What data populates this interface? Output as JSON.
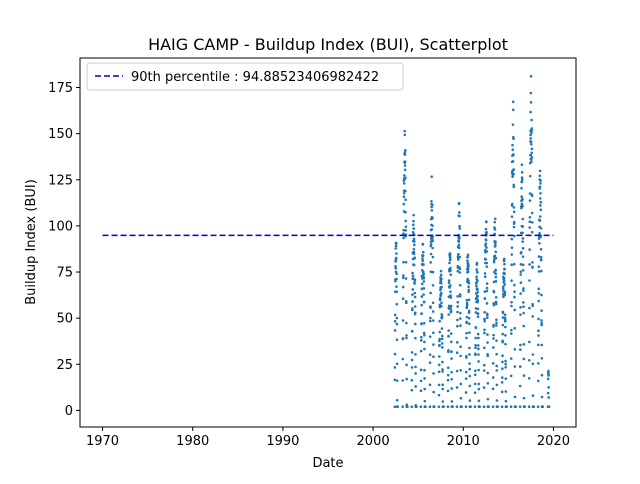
{
  "chart_data": {
    "type": "scatter",
    "title": "HAIG CAMP - Buildup Index (BUI), Scatterplot",
    "xlabel": "Date",
    "ylabel": "Buildup Index (BUI)",
    "xlim": [
      1967.5,
      2022.5
    ],
    "ylim": [
      -9,
      191
    ],
    "xticks": [
      1970,
      1980,
      1990,
      2000,
      2010,
      2020
    ],
    "yticks": [
      0,
      25,
      50,
      75,
      100,
      125,
      150,
      175
    ],
    "grid": false,
    "legend_position": "top-left",
    "reference_line": {
      "label": "90th percentile : 94.88523406982422",
      "y": 94.88523406982422,
      "x_range": [
        1970,
        2020
      ],
      "color": "#0000cc",
      "style": "dashed"
    },
    "series": [
      {
        "color": "#1f77b4",
        "seasons": [
          {
            "year": 2002,
            "start": 0.4,
            "end": 0.72,
            "max": 98
          },
          {
            "year": 2003,
            "start": 0.28,
            "end": 0.8,
            "max": 155
          },
          {
            "year": 2004,
            "start": 0.28,
            "end": 0.8,
            "max": 107
          },
          {
            "year": 2005,
            "start": 0.3,
            "end": 0.8,
            "max": 96
          },
          {
            "year": 2006,
            "start": 0.3,
            "end": 0.78,
            "max": 127
          },
          {
            "year": 2007,
            "start": 0.3,
            "end": 0.8,
            "max": 78
          },
          {
            "year": 2008,
            "start": 0.3,
            "end": 0.8,
            "max": 88
          },
          {
            "year": 2009,
            "start": 0.3,
            "end": 0.8,
            "max": 117
          },
          {
            "year": 2010,
            "start": 0.3,
            "end": 0.8,
            "max": 90
          },
          {
            "year": 2011,
            "start": 0.3,
            "end": 0.8,
            "max": 80
          },
          {
            "year": 2012,
            "start": 0.3,
            "end": 0.8,
            "max": 108
          },
          {
            "year": 2013,
            "start": 0.3,
            "end": 0.8,
            "max": 106
          },
          {
            "year": 2014,
            "start": 0.3,
            "end": 0.8,
            "max": 84
          },
          {
            "year": 2015,
            "start": 0.3,
            "end": 0.8,
            "max": 169
          },
          {
            "year": 2016,
            "start": 0.3,
            "end": 0.8,
            "max": 135
          },
          {
            "year": 2017,
            "start": 0.3,
            "end": 0.8,
            "max": 182
          },
          {
            "year": 2018,
            "start": 0.3,
            "end": 0.8,
            "max": 134
          },
          {
            "year": 2019,
            "start": 0.4,
            "end": 0.5,
            "max": 25
          }
        ]
      }
    ]
  }
}
